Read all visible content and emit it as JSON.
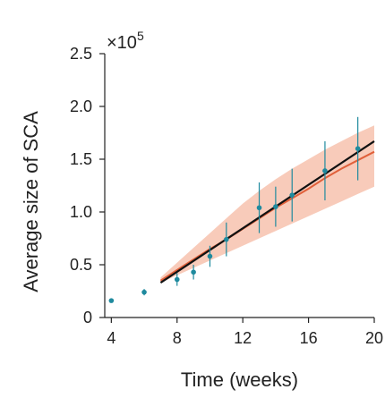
{
  "chart_data": {
    "type": "scatter",
    "xlabel": "Time (weeks)",
    "ylabel": "Average size of SCA",
    "y_multiplier": "×10",
    "y_multiplier_exponent": "5",
    "xlim": [
      3.6,
      20
    ],
    "ylim": [
      0,
      2.5
    ],
    "x_ticks": [
      4,
      8,
      12,
      16,
      20
    ],
    "x_tick_labels": [
      "4",
      "8",
      "12",
      "16",
      "20"
    ],
    "y_ticks": [
      0,
      0.5,
      1.0,
      1.5,
      2.0,
      2.5
    ],
    "y_tick_labels": [
      "0",
      "0.5",
      "1.0",
      "1.5",
      "2.0",
      "2.5"
    ],
    "grid": false,
    "colors": {
      "points": "#1f8a9e",
      "fit_line": "#111111",
      "model_line": "#e0603a",
      "model_band": "#f6b9a3",
      "axis": "#222222"
    },
    "series": [
      {
        "type": "scatter-errorbar",
        "x": [
          4,
          6,
          8,
          9,
          10,
          11,
          13,
          14,
          15,
          17,
          19
        ],
        "y": [
          0.16,
          0.24,
          0.36,
          0.43,
          0.58,
          0.74,
          1.04,
          1.05,
          1.16,
          1.39,
          1.6
        ],
        "err": [
          0.02,
          0.03,
          0.06,
          0.07,
          0.1,
          0.16,
          0.24,
          0.19,
          0.25,
          0.28,
          0.3
        ]
      },
      {
        "type": "line",
        "x": [
          7,
          20
        ],
        "y": [
          0.33,
          1.67
        ]
      },
      {
        "type": "line",
        "x": [
          7,
          8,
          9,
          10,
          11,
          12,
          13,
          14,
          15,
          16,
          17,
          18,
          19,
          20
        ],
        "y": [
          0.35,
          0.45,
          0.55,
          0.65,
          0.74,
          0.84,
          0.94,
          1.04,
          1.13,
          1.22,
          1.32,
          1.41,
          1.49,
          1.57
        ]
      },
      {
        "type": "band",
        "x": [
          7,
          8,
          9,
          10,
          11,
          12,
          13,
          14,
          15,
          16,
          17,
          18,
          19,
          20
        ],
        "lower": [
          0.33,
          0.4,
          0.47,
          0.54,
          0.61,
          0.68,
          0.75,
          0.82,
          0.89,
          0.96,
          1.03,
          1.1,
          1.17,
          1.24
        ],
        "upper": [
          0.38,
          0.52,
          0.66,
          0.8,
          0.94,
          1.08,
          1.2,
          1.31,
          1.41,
          1.5,
          1.59,
          1.67,
          1.75,
          1.82
        ]
      }
    ]
  }
}
